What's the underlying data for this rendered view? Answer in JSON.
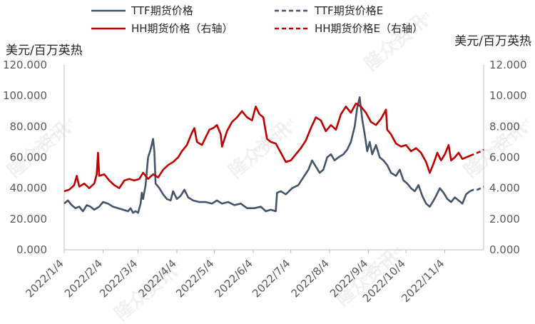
{
  "chart_data": {
    "type": "line",
    "title": "",
    "left_unit": "美元/百万英热",
    "right_unit": "美元/百万英热",
    "y_left": {
      "min": 0,
      "max": 120,
      "ticks": [
        0,
        20,
        40,
        60,
        80,
        100,
        120
      ],
      "tick_labels": [
        "0.000",
        "20.000",
        "40.000",
        "60.000",
        "80.000",
        "100.000",
        "120.000"
      ]
    },
    "y_right": {
      "min": 0,
      "max": 12,
      "ticks": [
        0,
        2,
        4,
        6,
        8,
        10,
        12
      ],
      "tick_labels": [
        "0.000",
        "2.000",
        "4.000",
        "6.000",
        "8.000",
        "10.000",
        "12.000"
      ]
    },
    "x_range": [
      "2022-01-04",
      "2022-12-05"
    ],
    "x_ticks": [
      "2022/1/4",
      "2022/2/4",
      "2022/3/4",
      "2022/4/4",
      "2022/5/4",
      "2022/6/4",
      "2022/7/4",
      "2022/8/4",
      "2022/9/4",
      "2022/10/4",
      "2022/11/4"
    ],
    "legend": [
      {
        "label": "TTF期货价格",
        "color": "#44546A",
        "dash": false
      },
      {
        "label": "TTF期货价格E",
        "color": "#44546A",
        "dash": true
      },
      {
        "label": "HH期货价格（右轴）",
        "color": "#C00000",
        "dash": false
      },
      {
        "label": "HH期货价格E（右轴）",
        "color": "#C00000",
        "dash": true
      }
    ],
    "watermarks": [
      "隆众资讯",
      "OilChem.net"
    ],
    "series": [
      {
        "name": "TTF期货价格",
        "axis": "left",
        "color": "#44546A",
        "dash": false,
        "points": [
          [
            "2022-01-04",
            30
          ],
          [
            "2022-01-07",
            32
          ],
          [
            "2022-01-10",
            29
          ],
          [
            "2022-01-13",
            27
          ],
          [
            "2022-01-16",
            28
          ],
          [
            "2022-01-19",
            25
          ],
          [
            "2022-01-22",
            29
          ],
          [
            "2022-01-25",
            28
          ],
          [
            "2022-01-28",
            26
          ],
          [
            "2022-02-01",
            28
          ],
          [
            "2022-02-04",
            31
          ],
          [
            "2022-02-08",
            30
          ],
          [
            "2022-02-12",
            28
          ],
          [
            "2022-02-16",
            27
          ],
          [
            "2022-02-20",
            26
          ],
          [
            "2022-02-24",
            25
          ],
          [
            "2022-02-26",
            27
          ],
          [
            "2022-02-28",
            24
          ],
          [
            "2022-03-02",
            25
          ],
          [
            "2022-03-04",
            24
          ],
          [
            "2022-03-06",
            30
          ],
          [
            "2022-03-07",
            37
          ],
          [
            "2022-03-08",
            33
          ],
          [
            "2022-03-10",
            42
          ],
          [
            "2022-03-12",
            60
          ],
          [
            "2022-03-14",
            65
          ],
          [
            "2022-03-16",
            72
          ],
          [
            "2022-03-17",
            64
          ],
          [
            "2022-03-18",
            43
          ],
          [
            "2022-03-21",
            40
          ],
          [
            "2022-03-24",
            36
          ],
          [
            "2022-03-27",
            33
          ],
          [
            "2022-03-30",
            32
          ],
          [
            "2022-04-01",
            38
          ],
          [
            "2022-04-04",
            33
          ],
          [
            "2022-04-07",
            35
          ],
          [
            "2022-04-10",
            39
          ],
          [
            "2022-04-13",
            34
          ],
          [
            "2022-04-17",
            32
          ],
          [
            "2022-04-22",
            31
          ],
          [
            "2022-04-27",
            31
          ],
          [
            "2022-05-02",
            30
          ],
          [
            "2022-05-06",
            32
          ],
          [
            "2022-05-10",
            30
          ],
          [
            "2022-05-15",
            31
          ],
          [
            "2022-05-20",
            29
          ],
          [
            "2022-05-25",
            30
          ],
          [
            "2022-05-30",
            27
          ],
          [
            "2022-06-05",
            27
          ],
          [
            "2022-06-10",
            28
          ],
          [
            "2022-06-14",
            25
          ],
          [
            "2022-06-18",
            26
          ],
          [
            "2022-06-22",
            25
          ],
          [
            "2022-06-23",
            37
          ],
          [
            "2022-06-26",
            38
          ],
          [
            "2022-06-30",
            36
          ],
          [
            "2022-07-05",
            40
          ],
          [
            "2022-07-10",
            42
          ],
          [
            "2022-07-14",
            47
          ],
          [
            "2022-07-18",
            52
          ],
          [
            "2022-07-21",
            58
          ],
          [
            "2022-07-24",
            54
          ],
          [
            "2022-07-27",
            50
          ],
          [
            "2022-07-30",
            52
          ],
          [
            "2022-08-02",
            60
          ],
          [
            "2022-08-05",
            62
          ],
          [
            "2022-08-08",
            58
          ],
          [
            "2022-08-11",
            60
          ],
          [
            "2022-08-15",
            62
          ],
          [
            "2022-08-18",
            65
          ],
          [
            "2022-08-21",
            70
          ],
          [
            "2022-08-24",
            80
          ],
          [
            "2022-08-26",
            92
          ],
          [
            "2022-08-28",
            99
          ],
          [
            "2022-08-30",
            85
          ],
          [
            "2022-09-01",
            75
          ],
          [
            "2022-09-03",
            64
          ],
          [
            "2022-09-05",
            70
          ],
          [
            "2022-09-07",
            62
          ],
          [
            "2022-09-10",
            68
          ],
          [
            "2022-09-13",
            60
          ],
          [
            "2022-09-16",
            58
          ],
          [
            "2022-09-19",
            55
          ],
          [
            "2022-09-22",
            50
          ],
          [
            "2022-09-26",
            48
          ],
          [
            "2022-09-29",
            52
          ],
          [
            "2022-10-02",
            45
          ],
          [
            "2022-10-05",
            43
          ],
          [
            "2022-10-08",
            40
          ],
          [
            "2022-10-11",
            38
          ],
          [
            "2022-10-14",
            42
          ],
          [
            "2022-10-17",
            35
          ],
          [
            "2022-10-20",
            30
          ],
          [
            "2022-10-23",
            28
          ],
          [
            "2022-10-26",
            32
          ],
          [
            "2022-10-28",
            35
          ],
          [
            "2022-10-31",
            40
          ],
          [
            "2022-11-03",
            37
          ],
          [
            "2022-11-06",
            33
          ],
          [
            "2022-11-09",
            31
          ],
          [
            "2022-11-12",
            34
          ],
          [
            "2022-11-15",
            32
          ],
          [
            "2022-11-18",
            30
          ],
          [
            "2022-11-21",
            36
          ],
          [
            "2022-11-24",
            38
          ]
        ]
      },
      {
        "name": "TTF期货价格E",
        "axis": "left",
        "color": "#44546A",
        "dash": true,
        "points": [
          [
            "2022-11-24",
            38
          ],
          [
            "2022-11-27",
            39
          ],
          [
            "2022-11-30",
            39
          ],
          [
            "2022-12-03",
            40
          ],
          [
            "2022-12-05",
            41
          ]
        ]
      },
      {
        "name": "HH期货价格（右轴）",
        "axis": "right",
        "color": "#C00000",
        "dash": false,
        "points": [
          [
            "2022-01-04",
            3.8
          ],
          [
            "2022-01-08",
            3.9
          ],
          [
            "2022-01-12",
            4.2
          ],
          [
            "2022-01-14",
            4.8
          ],
          [
            "2022-01-16",
            4.1
          ],
          [
            "2022-01-20",
            4.3
          ],
          [
            "2022-01-24",
            4.0
          ],
          [
            "2022-01-28",
            4.3
          ],
          [
            "2022-01-30",
            4.9
          ],
          [
            "2022-01-31",
            6.3
          ],
          [
            "2022-02-01",
            4.8
          ],
          [
            "2022-02-05",
            4.9
          ],
          [
            "2022-02-09",
            4.5
          ],
          [
            "2022-02-13",
            4.2
          ],
          [
            "2022-02-17",
            4.0
          ],
          [
            "2022-02-21",
            4.5
          ],
          [
            "2022-02-25",
            4.6
          ],
          [
            "2022-03-01",
            4.5
          ],
          [
            "2022-03-05",
            4.6
          ],
          [
            "2022-03-08",
            5.0
          ],
          [
            "2022-03-12",
            4.6
          ],
          [
            "2022-03-16",
            4.9
          ],
          [
            "2022-03-20",
            4.7
          ],
          [
            "2022-03-24",
            5.2
          ],
          [
            "2022-03-28",
            5.5
          ],
          [
            "2022-04-01",
            5.7
          ],
          [
            "2022-04-05",
            6.0
          ],
          [
            "2022-04-08",
            6.4
          ],
          [
            "2022-04-12",
            6.8
          ],
          [
            "2022-04-16",
            7.6
          ],
          [
            "2022-04-18",
            7.9
          ],
          [
            "2022-04-20",
            7.0
          ],
          [
            "2022-04-24",
            6.8
          ],
          [
            "2022-04-27",
            7.3
          ],
          [
            "2022-04-30",
            7.8
          ],
          [
            "2022-05-03",
            7.9
          ],
          [
            "2022-05-06",
            8.1
          ],
          [
            "2022-05-09",
            7.5
          ],
          [
            "2022-05-10",
            6.7
          ],
          [
            "2022-05-14",
            7.7
          ],
          [
            "2022-05-18",
            8.3
          ],
          [
            "2022-05-22",
            8.6
          ],
          [
            "2022-05-26",
            9.0
          ],
          [
            "2022-05-30",
            8.6
          ],
          [
            "2022-06-03",
            8.4
          ],
          [
            "2022-06-06",
            9.3
          ],
          [
            "2022-06-09",
            8.8
          ],
          [
            "2022-06-12",
            8.6
          ],
          [
            "2022-06-15",
            7.2
          ],
          [
            "2022-06-18",
            7.0
          ],
          [
            "2022-06-22",
            6.9
          ],
          [
            "2022-06-26",
            6.3
          ],
          [
            "2022-06-30",
            5.7
          ],
          [
            "2022-07-04",
            5.8
          ],
          [
            "2022-07-08",
            6.2
          ],
          [
            "2022-07-12",
            6.6
          ],
          [
            "2022-07-16",
            7.1
          ],
          [
            "2022-07-20",
            7.9
          ],
          [
            "2022-07-24",
            8.6
          ],
          [
            "2022-07-28",
            8.4
          ],
          [
            "2022-08-01",
            7.7
          ],
          [
            "2022-08-05",
            8.1
          ],
          [
            "2022-08-09",
            7.8
          ],
          [
            "2022-08-13",
            8.8
          ],
          [
            "2022-08-17",
            9.3
          ],
          [
            "2022-08-21",
            8.9
          ],
          [
            "2022-08-25",
            9.5
          ],
          [
            "2022-08-29",
            9.3
          ],
          [
            "2022-09-02",
            8.9
          ],
          [
            "2022-09-06",
            8.3
          ],
          [
            "2022-09-10",
            8.1
          ],
          [
            "2022-09-14",
            8.5
          ],
          [
            "2022-09-18",
            9.1
          ],
          [
            "2022-09-19",
            7.8
          ],
          [
            "2022-09-22",
            7.5
          ],
          [
            "2022-09-26",
            6.9
          ],
          [
            "2022-09-30",
            6.7
          ],
          [
            "2022-10-04",
            6.8
          ],
          [
            "2022-10-08",
            6.4
          ],
          [
            "2022-10-12",
            6.6
          ],
          [
            "2022-10-16",
            6.3
          ],
          [
            "2022-10-20",
            5.7
          ],
          [
            "2022-10-23",
            5.0
          ],
          [
            "2022-10-26",
            5.6
          ],
          [
            "2022-10-29",
            6.3
          ],
          [
            "2022-11-01",
            5.8
          ],
          [
            "2022-11-04",
            6.2
          ],
          [
            "2022-11-07",
            6.8
          ],
          [
            "2022-11-09",
            5.8
          ],
          [
            "2022-11-12",
            6.0
          ],
          [
            "2022-11-15",
            6.3
          ],
          [
            "2022-11-18",
            5.9
          ],
          [
            "2022-11-21",
            6.0
          ],
          [
            "2022-11-24",
            6.1
          ]
        ]
      },
      {
        "name": "HH期货价格E（右轴）",
        "axis": "right",
        "color": "#C00000",
        "dash": true,
        "points": [
          [
            "2022-11-24",
            6.1
          ],
          [
            "2022-11-27",
            6.2
          ],
          [
            "2022-11-30",
            6.3
          ],
          [
            "2022-12-03",
            6.4
          ],
          [
            "2022-12-05",
            6.5
          ]
        ]
      }
    ]
  }
}
